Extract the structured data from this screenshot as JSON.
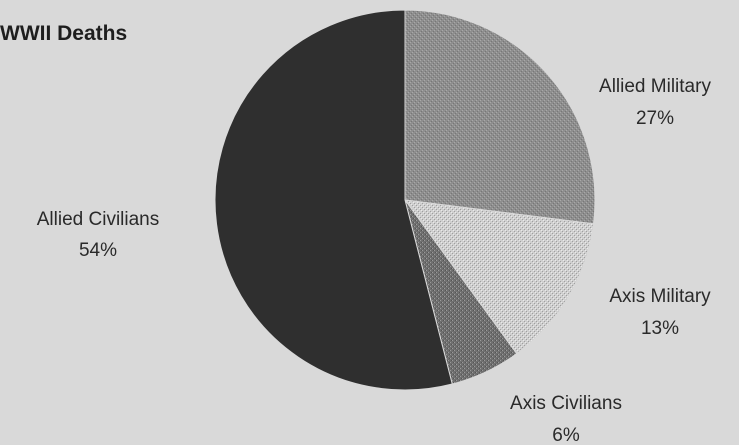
{
  "chart_data": {
    "type": "pie",
    "title": "WWII Deaths",
    "slices": [
      {
        "label": "Allied Military",
        "value": 27,
        "display": "27%",
        "color": "#8c8c8c",
        "pattern": "pat-allied-military",
        "label_anchor": "middle"
      },
      {
        "label": "Axis Military",
        "value": 13,
        "display": "13%",
        "color": "#c8c8c8",
        "pattern": "pat-axis-military",
        "label_anchor": "middle"
      },
      {
        "label": "Axis Civilians",
        "value": 6,
        "display": "6%",
        "color": "#6e6e6e",
        "pattern": "pat-axis-civilians",
        "label_anchor": "middle"
      },
      {
        "label": "Allied Civilians",
        "value": 54,
        "display": "54%",
        "color": "#2f2f2f",
        "pattern": "",
        "label_anchor": "middle"
      }
    ]
  }
}
